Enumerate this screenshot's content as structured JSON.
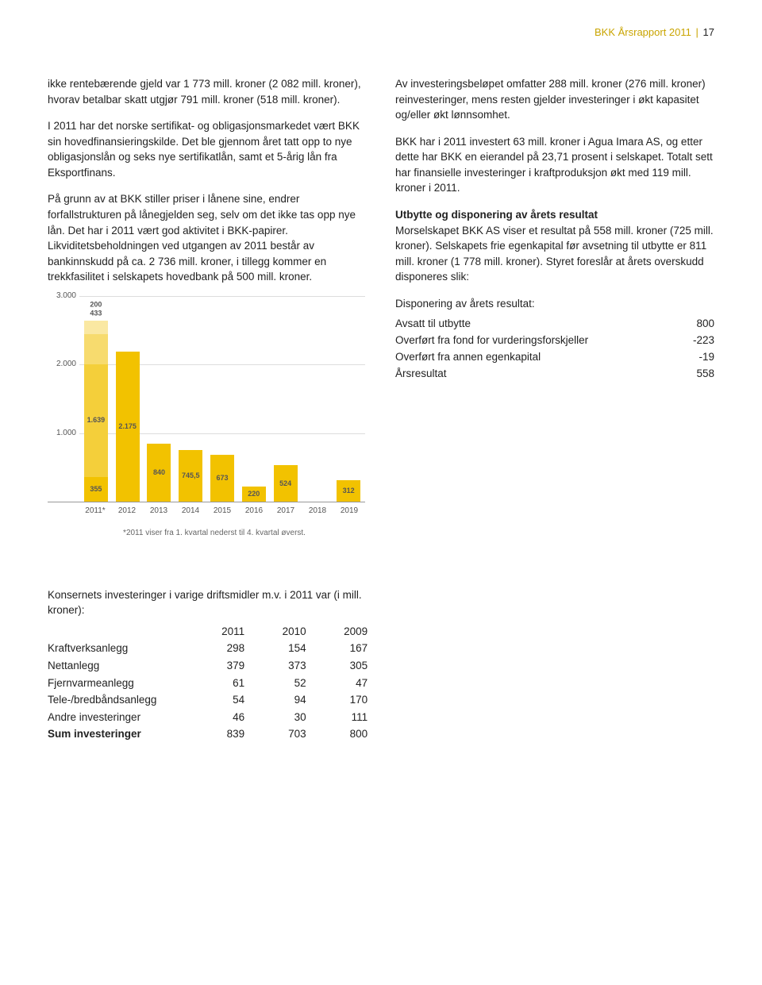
{
  "header": {
    "brand": "BKK Årsrapport 2011",
    "page": "17"
  },
  "left_col": {
    "p1": "ikke rentebærende gjeld var 1 773 mill. kroner (2 082 mill. kroner), hvorav betalbar skatt utgjør 791 mill. kroner (518 mill. kroner).",
    "p2": "I 2011 har det norske sertifikat- og obligasjonsmarkedet vært BKK sin hovedfinansieringskilde. Det ble gjennom året tatt opp to nye obligasjonslån og seks nye sertifikatlån, samt et 5-årig lån fra Eksportfinans.",
    "p3": "På grunn av at BKK stiller priser i lånene sine, endrer forfallstrukturen på lånegjelden seg, selv om det ikke tas opp nye lån. Det har i 2011 vært god aktivitet i BKK-papirer. Likviditetsbeholdningen ved utgangen av 2011 består av bankinnskudd på ca. 2 736 mill. kroner, i tillegg kommer en trekkfasilitet i selskapets hovedbank på 500 mill. kroner."
  },
  "right_col": {
    "p1": "Av investeringsbeløpet omfatter 288 mill. kroner (276 mill. kroner) reinvesteringer, mens resten gjelder investeringer i økt kapasitet og/eller økt lønnsomhet.",
    "p2": "BKK har i 2011 investert 63 mill. kroner i Agua Imara AS, og etter dette har BKK en eierandel på 23,71 prosent i selskapet. Totalt sett har finansielle investeringer i kraftproduksjon økt med 119 mill. kroner i 2011.",
    "h": "Utbytte og disponering av årets resultat",
    "p3": "Morselskapet BKK AS viser et resultat på 558 mill. kroner (725 mill. kroner). Selskapets frie egenkapital før avsetning til utbytte er 811 mill. kroner (1 778 mill. kroner). Styret foreslår at årets overskudd disponeres slik:",
    "disp_title": "Disponering av årets resultat:",
    "disp": [
      {
        "label": "Avsatt til utbytte",
        "value": "800"
      },
      {
        "label": "Overført fra fond for vurderingsforskjeller",
        "value": "-223"
      },
      {
        "label": "Overført fra annen egenkapital",
        "value": "-19"
      },
      {
        "label": "Årsresultat",
        "value": "558"
      }
    ]
  },
  "chart": {
    "ymax": 3000,
    "yticks": [
      {
        "v": 3000,
        "label": "3.000"
      },
      {
        "v": 2000,
        "label": "2.000"
      },
      {
        "v": 1000,
        "label": "1.000"
      }
    ],
    "colors": {
      "seg1": "#f2c200",
      "seg2": "#f4cf3a",
      "seg3": "#f7db6e",
      "seg4": "#fae8a2"
    },
    "bars": [
      {
        "x": "2011*",
        "segments": [
          355,
          1639,
          433,
          200
        ],
        "top_labels": [
          "200",
          "433"
        ],
        "stack_labels": [
          "355",
          "1.639",
          "",
          ""
        ]
      },
      {
        "x": "2012",
        "segments": [
          2175
        ],
        "top_labels": [],
        "stack_labels": [
          "2.175"
        ]
      },
      {
        "x": "2013",
        "segments": [
          840
        ],
        "top_labels": [],
        "stack_labels": [
          "840"
        ]
      },
      {
        "x": "2014",
        "segments": [
          745.5
        ],
        "top_labels": [],
        "stack_labels": [
          "745,5"
        ]
      },
      {
        "x": "2015",
        "segments": [
          673
        ],
        "top_labels": [],
        "stack_labels": [
          "673"
        ]
      },
      {
        "x": "2016",
        "segments": [
          220
        ],
        "top_labels": [],
        "stack_labels": [
          "220"
        ]
      },
      {
        "x": "2017",
        "segments": [
          524
        ],
        "top_labels": [],
        "stack_labels": [
          "524"
        ]
      },
      {
        "x": "2018",
        "segments": [
          0
        ],
        "top_labels": [],
        "stack_labels": [
          ""
        ]
      },
      {
        "x": "2019",
        "segments": [
          312
        ],
        "top_labels": [],
        "stack_labels": [
          "312"
        ]
      }
    ],
    "footnote": "*2011 viser fra 1. kvartal nederst til 4. kvartal øverst."
  },
  "lower": {
    "intro": "Konsernets investeringer i varige driftsmidler m.v. i 2011 var (i mill. kroner):",
    "head": [
      "",
      "2011",
      "2010",
      "2009"
    ],
    "rows": [
      [
        "Kraftverksanlegg",
        "298",
        "154",
        "167"
      ],
      [
        "Nettanlegg",
        "379",
        "373",
        "305"
      ],
      [
        "Fjernvarmeanlegg",
        "61",
        "52",
        "47"
      ],
      [
        "Tele-/bredbåndsanlegg",
        "54",
        "94",
        "170"
      ],
      [
        "Andre investeringer",
        "46",
        "30",
        "111"
      ],
      [
        "Sum investeringer",
        "839",
        "703",
        "800"
      ]
    ]
  }
}
